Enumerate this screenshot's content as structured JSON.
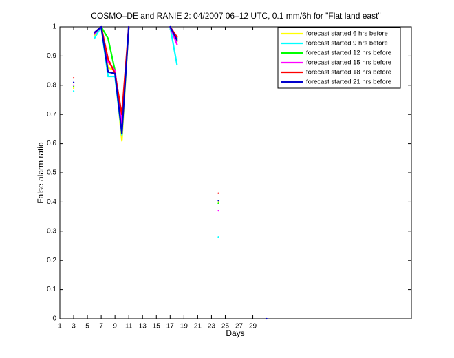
{
  "chart_data": {
    "type": "line",
    "title": "COSMO–DE and RANIE 2: 04/2007 06–12 UTC, 0.1 mm/6h for \"Flat land east\"",
    "xlabel": "Days",
    "ylabel": "False alarm ratio",
    "x": [
      3,
      4,
      6,
      7,
      8,
      9,
      10,
      11,
      12,
      17,
      18,
      19,
      24,
      25,
      31
    ],
    "series": [
      {
        "name": "forecast started 6 hrs before",
        "color": "#ffff00",
        "values": [
          0.79,
          null,
          0.97,
          1,
          0.86,
          0.85,
          0.61,
          1,
          null,
          1,
          0.95,
          null,
          0.4,
          null,
          null
        ]
      },
      {
        "name": "forecast started 9 hrs before",
        "color": "#00ffff",
        "values": [
          0.78,
          null,
          0.96,
          1,
          0.83,
          0.83,
          0.63,
          1,
          null,
          1,
          0.87,
          null,
          0.28,
          null,
          null
        ]
      },
      {
        "name": "forecast started 12 hrs before",
        "color": "#00ff00",
        "values": [
          0.795,
          null,
          0.975,
          1,
          0.96,
          0.85,
          0.65,
          1,
          null,
          1,
          0.96,
          null,
          0.395,
          null,
          null
        ]
      },
      {
        "name": "forecast started 15 hrs before",
        "color": "#ff00ff",
        "values": [
          0.8,
          null,
          0.975,
          1,
          0.88,
          0.85,
          0.67,
          1,
          null,
          1,
          0.94,
          null,
          0.37,
          null,
          null
        ]
      },
      {
        "name": "forecast started 18 hrs before",
        "color": "#ff0000",
        "values": [
          0.825,
          null,
          0.98,
          1,
          0.89,
          0.84,
          0.7,
          1,
          null,
          1,
          0.965,
          null,
          0.43,
          null,
          null
        ]
      },
      {
        "name": "forecast started 21 hrs before",
        "color": "#0000cc",
        "values": [
          0.81,
          null,
          0.98,
          1,
          0.845,
          0.84,
          0.635,
          1,
          null,
          1,
          0.955,
          null,
          0.405,
          null,
          0
        ]
      }
    ],
    "xlim": [
      1,
      52
    ],
    "ylim": [
      0,
      1
    ],
    "xticks": [
      1,
      3,
      5,
      7,
      9,
      11,
      13,
      15,
      17,
      19,
      21,
      23,
      25,
      27,
      29
    ],
    "yticks": [
      0,
      0.1,
      0.2,
      0.3,
      0.4,
      0.5,
      0.6,
      0.7,
      0.8,
      0.9,
      1
    ],
    "grid": false,
    "legend": "upper right"
  }
}
